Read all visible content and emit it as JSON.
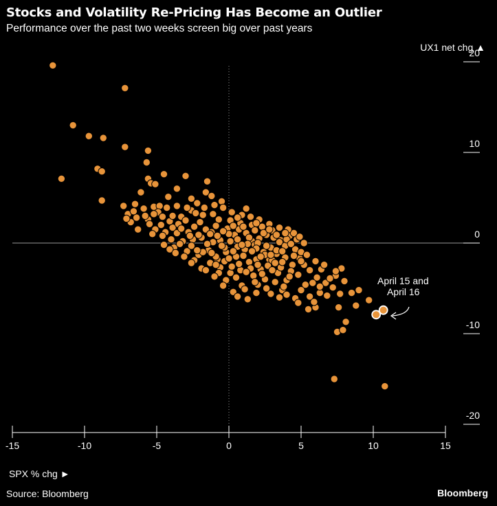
{
  "header": {
    "title": "Stocks and Volatility Re-Pricing Has Become an Outlier",
    "subtitle": "Performance over the past two weeks screen big over past years"
  },
  "footer": {
    "source": "Source: Bloomberg",
    "brand": "Bloomberg"
  },
  "colors": {
    "background": "#000000",
    "point_fill": "#e8943a",
    "point_stroke": "#000000",
    "highlight_fill": "#ffffff",
    "axis": "#ffffff",
    "zero_line": "#9a9a9a"
  },
  "chart_data": {
    "type": "scatter",
    "title": "Stocks and Volatility Re-Pricing Has Become an Outlier",
    "subtitle": "Performance over the past two weeks screen big over past years",
    "xlabel": "SPX % chg ►",
    "ylabel": "UX1 net chg ▲",
    "xlim": [
      -15,
      15
    ],
    "ylim": [
      -20,
      20
    ],
    "x_ticks": [
      -15,
      -10,
      -5,
      0,
      5,
      10,
      15
    ],
    "y_ticks": [
      20,
      10,
      0,
      -10,
      -20
    ],
    "x_tick_labels": [
      "-15",
      "-10",
      "-5",
      "0",
      "5",
      "10",
      "15"
    ],
    "y_tick_labels": [
      "20",
      "10",
      "0",
      "-10",
      "-20"
    ],
    "grid": false,
    "legend": "none",
    "series": [
      {
        "points": [
          [
            -12.2,
            19.6
          ],
          [
            -7.2,
            17.1
          ],
          [
            -10.8,
            13.0
          ],
          [
            -9.7,
            11.8
          ],
          [
            -8.7,
            11.6
          ],
          [
            -7.2,
            10.6
          ],
          [
            -5.6,
            10.2
          ],
          [
            -5.7,
            8.9
          ],
          [
            -9.1,
            8.2
          ],
          [
            -8.8,
            7.9
          ],
          [
            -11.6,
            7.1
          ],
          [
            -4.5,
            7.6
          ],
          [
            -3.0,
            7.4
          ],
          [
            -1.5,
            6.8
          ],
          [
            -5.6,
            7.1
          ],
          [
            -5.4,
            6.6
          ],
          [
            -5.1,
            6.5
          ],
          [
            -6.1,
            5.6
          ],
          [
            -4.2,
            5.1
          ],
          [
            -3.6,
            6.0
          ],
          [
            -1.6,
            5.6
          ],
          [
            -1.2,
            5.2
          ],
          [
            -7.3,
            4.1
          ],
          [
            -8.8,
            4.7
          ],
          [
            -6.5,
            4.3
          ],
          [
            -5.9,
            3.8
          ],
          [
            -5.2,
            4.0
          ],
          [
            -4.8,
            4.1
          ],
          [
            -2.6,
            4.9
          ],
          [
            -0.5,
            4.6
          ],
          [
            -7.0,
            3.2
          ],
          [
            -6.4,
            2.8
          ],
          [
            -5.6,
            2.6
          ],
          [
            -6.8,
            2.3
          ],
          [
            -3.3,
            2.9
          ],
          [
            -4.7,
            2.0
          ],
          [
            -1.8,
            3.1
          ],
          [
            -3.9,
            1.7
          ],
          [
            -5.1,
            1.5
          ],
          [
            -4.4,
            1.2
          ],
          [
            -2.4,
            1.8
          ],
          [
            -3.6,
            1.1
          ],
          [
            -2.0,
            2.3
          ],
          [
            -4.6,
            0.8
          ],
          [
            -3.2,
            0.2
          ],
          [
            -2.5,
            0.4
          ],
          [
            -1.2,
            1.2
          ],
          [
            -3.8,
            -0.5
          ],
          [
            -2.9,
            -0.9
          ],
          [
            -2.1,
            -1.3
          ],
          [
            -1.4,
            -0.8
          ],
          [
            -0.6,
            0.3
          ],
          [
            0.4,
            0.9
          ],
          [
            1.2,
            1.1
          ],
          [
            -0.8,
            -1.8
          ],
          [
            0.5,
            -1.5
          ],
          [
            1.1,
            -0.7
          ],
          [
            1.6,
            0.2
          ],
          [
            2.1,
            0.5
          ],
          [
            2.6,
            0.9
          ],
          [
            3.1,
            0.6
          ],
          [
            3.6,
            0.3
          ],
          [
            4.2,
            0.8
          ],
          [
            4.5,
            1.1
          ],
          [
            1.4,
            -2.1
          ],
          [
            2.2,
            -2.9
          ],
          [
            2.8,
            -1.8
          ],
          [
            3.3,
            -1.2
          ],
          [
            3.9,
            -1.6
          ],
          [
            4.4,
            -2.4
          ],
          [
            0.8,
            -3.0
          ],
          [
            1.7,
            -3.6
          ],
          [
            2.5,
            -4.0
          ],
          [
            3.4,
            -3.3
          ],
          [
            4.0,
            -4.1
          ],
          [
            4.8,
            -3.5
          ],
          [
            5.2,
            -2.4
          ],
          [
            4.9,
            -1.7
          ],
          [
            5.6,
            -3.0
          ],
          [
            6.1,
            -3.8
          ],
          [
            6.4,
            -2.9
          ],
          [
            5.3,
            -4.6
          ],
          [
            6.7,
            -4.4
          ],
          [
            7.4,
            -3.6
          ],
          [
            7.8,
            -2.8
          ],
          [
            8.0,
            -4.2
          ],
          [
            7.2,
            -4.9
          ],
          [
            6.3,
            -5.5
          ],
          [
            5.6,
            -5.9
          ],
          [
            8.5,
            -5.5
          ],
          [
            9.0,
            -5.2
          ],
          [
            9.7,
            -6.3
          ],
          [
            8.8,
            -6.9
          ],
          [
            7.6,
            -7.1
          ],
          [
            6.0,
            -7.1
          ],
          [
            5.5,
            -7.3
          ],
          [
            4.6,
            -6.1
          ],
          [
            3.7,
            -5.2
          ],
          [
            2.9,
            -5.6
          ],
          [
            1.3,
            -6.2
          ],
          [
            0.9,
            -4.7
          ],
          [
            0.1,
            -3.3
          ],
          [
            -0.6,
            -2.7
          ],
          [
            -1.3,
            -2.2
          ],
          [
            -0.2,
            -1.0
          ],
          [
            0.6,
            -0.4
          ],
          [
            1.8,
            -0.2
          ],
          [
            2.4,
            -1.0
          ],
          [
            2.9,
            -0.5
          ],
          [
            3.5,
            0.1
          ],
          [
            3.0,
            1.4
          ],
          [
            2.3,
            1.8
          ],
          [
            1.6,
            2.0
          ],
          [
            0.8,
            2.2
          ],
          [
            0.1,
            2.5
          ],
          [
            -0.7,
            2.6
          ],
          [
            -1.1,
            3.2
          ],
          [
            0.2,
            3.4
          ],
          [
            0.9,
            3.1
          ],
          [
            1.5,
            2.9
          ],
          [
            -2.6,
            3.6
          ],
          [
            -3.6,
            4.1
          ],
          [
            -4.3,
            3.9
          ],
          [
            -4.9,
            3.4
          ],
          [
            -5.5,
            2.1
          ],
          [
            -4.1,
            2.4
          ],
          [
            -3.5,
            2.1
          ],
          [
            -2.8,
            1.2
          ],
          [
            -1.9,
            0.6
          ],
          [
            -1.1,
            0.1
          ],
          [
            -0.3,
            -0.5
          ],
          [
            0.3,
            -0.9
          ],
          [
            1.0,
            -1.4
          ],
          [
            1.9,
            -1.8
          ],
          [
            2.7,
            -2.5
          ],
          [
            3.6,
            -2.7
          ],
          [
            4.3,
            -3.1
          ],
          [
            3.2,
            -4.3
          ],
          [
            2.0,
            -4.6
          ],
          [
            1.1,
            -5.1
          ],
          [
            0.3,
            -5.4
          ],
          [
            -0.3,
            -2.0
          ],
          [
            -0.9,
            -1.5
          ],
          [
            -1.8,
            -1.0
          ],
          [
            -2.6,
            -0.3
          ],
          [
            -3.4,
            -0.1
          ],
          [
            -4.1,
            -0.7
          ],
          [
            -1.6,
            1.5
          ],
          [
            -0.9,
            1.9
          ],
          [
            -0.1,
            1.6
          ],
          [
            0.7,
            1.5
          ],
          [
            1.4,
            0.6
          ],
          [
            2.0,
            0.0
          ],
          [
            2.6,
            -0.3
          ],
          [
            3.3,
            -0.8
          ],
          [
            3.9,
            -0.3
          ],
          [
            4.6,
            -0.7
          ],
          [
            5.0,
            -1.0
          ],
          [
            5.2,
            0.0
          ],
          [
            4.7,
            0.4
          ],
          [
            4.1,
            1.5
          ],
          [
            3.5,
            1.7
          ],
          [
            2.8,
            2.1
          ],
          [
            2.1,
            2.6
          ],
          [
            1.2,
            3.8
          ],
          [
            -0.4,
            3.9
          ],
          [
            -1.7,
            3.9
          ],
          [
            -2.3,
            3.3
          ],
          [
            -3.0,
            2.5
          ],
          [
            -3.9,
            3.0
          ],
          [
            -6.3,
            1.5
          ],
          [
            -5.3,
            1.0
          ],
          [
            -4.5,
            -0.2
          ],
          [
            -2.2,
            -0.8
          ],
          [
            -1.5,
            -0.1
          ],
          [
            -0.8,
            0.8
          ],
          [
            0.0,
            1.0
          ],
          [
            0.6,
            0.4
          ],
          [
            1.3,
            -0.1
          ],
          [
            1.9,
            -0.6
          ],
          [
            2.5,
            -1.3
          ],
          [
            3.0,
            -1.9
          ],
          [
            3.7,
            -2.1
          ],
          [
            4.5,
            -1.4
          ],
          [
            5.0,
            -2.0
          ],
          [
            4.2,
            -3.7
          ],
          [
            3.0,
            -3.0
          ],
          [
            2.3,
            -3.4
          ],
          [
            1.5,
            -2.8
          ],
          [
            0.7,
            -2.3
          ],
          [
            0.0,
            -1.7
          ],
          [
            -0.7,
            -3.3
          ],
          [
            -0.2,
            -4.1
          ],
          [
            0.5,
            -3.8
          ],
          [
            1.8,
            -4.3
          ],
          [
            2.6,
            -5.0
          ],
          [
            4.0,
            -5.7
          ],
          [
            5.0,
            -5.2
          ],
          [
            5.8,
            -4.4
          ],
          [
            6.3,
            -4.8
          ],
          [
            7.0,
            -3.9
          ],
          [
            6.8,
            -5.8
          ],
          [
            7.7,
            -5.6
          ],
          [
            5.9,
            -6.5
          ],
          [
            4.8,
            -6.6
          ],
          [
            3.5,
            -6.0
          ],
          [
            1.9,
            -5.5
          ],
          [
            0.6,
            -5.9
          ],
          [
            -0.4,
            -4.7
          ],
          [
            -1.0,
            -3.7
          ],
          [
            -1.9,
            -2.8
          ],
          [
            -2.4,
            -1.9
          ],
          [
            -3.1,
            -1.5
          ],
          [
            -3.7,
            -1.1
          ],
          [
            -2.1,
            0.9
          ],
          [
            -1.3,
            1.0
          ],
          [
            -0.4,
            1.3
          ],
          [
            0.3,
            1.9
          ],
          [
            1.0,
            1.8
          ],
          [
            1.8,
            1.4
          ],
          [
            2.4,
            1.1
          ],
          [
            3.3,
            0.9
          ],
          [
            4.0,
            0.4
          ],
          [
            4.9,
            0.7
          ],
          [
            0.1,
            0.2
          ],
          [
            0.9,
            -0.2
          ],
          [
            1.6,
            -0.9
          ],
          [
            2.2,
            -1.5
          ],
          [
            2.9,
            -1.3
          ],
          [
            3.7,
            -0.9
          ],
          [
            4.3,
            -0.1
          ],
          [
            -0.5,
            -0.3
          ],
          [
            -1.2,
            -1.1
          ],
          [
            -2.7,
            0.8
          ],
          [
            -3.3,
            1.6
          ],
          [
            -4.0,
            0.4
          ],
          [
            -2.9,
            3.9
          ],
          [
            -2.2,
            4.4
          ],
          [
            -1.0,
            4.2
          ],
          [
            0.6,
            2.8
          ],
          [
            1.9,
            2.2
          ],
          [
            2.8,
            1.5
          ],
          [
            3.9,
            1.1
          ],
          [
            3.2,
            -2.2
          ],
          [
            2.0,
            -2.4
          ],
          [
            1.2,
            -3.2
          ],
          [
            0.2,
            -2.6
          ],
          [
            -0.9,
            -2.4
          ],
          [
            -1.6,
            -3.0
          ],
          [
            -2.6,
            -2.2
          ],
          [
            -4.6,
            2.9
          ],
          [
            -5.8,
            3.0
          ],
          [
            -6.6,
            3.5
          ],
          [
            -7.1,
            2.7
          ],
          [
            -5.2,
            3.2
          ],
          [
            8.1,
            -8.7
          ],
          [
            7.5,
            -9.8
          ],
          [
            7.3,
            -15.0
          ],
          [
            10.8,
            -15.8
          ],
          [
            7.9,
            -9.6
          ],
          [
            7.4,
            -3.1
          ],
          [
            6.6,
            -2.4
          ],
          [
            5.4,
            -1.3
          ],
          [
            6.0,
            -2.0
          ],
          [
            3.8,
            -4.8
          ],
          [
            10.2,
            -7.9
          ],
          [
            10.7,
            -7.4
          ]
        ]
      }
    ],
    "highlight": {
      "label_line1": "April 15 and",
      "label_line2": "April 16",
      "points": [
        [
          10.2,
          -7.9
        ],
        [
          10.7,
          -7.4
        ]
      ]
    }
  }
}
